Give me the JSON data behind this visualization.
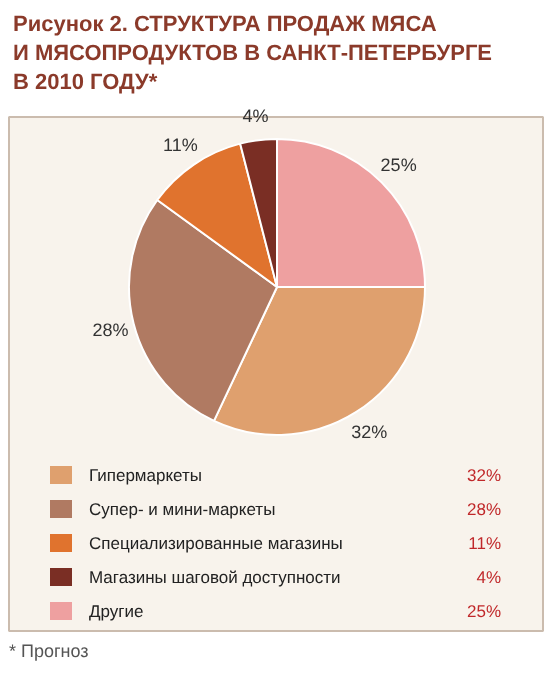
{
  "chart_data": {
    "type": "pie",
    "title": "Рисунок 2. СТРУКТУРА ПРОДАЖ МЯСА\nИ МЯСОПРОДУКТОВ В САНКТ-ПЕТЕРБУРГЕ\nВ 2010 ГОДУ*",
    "categories": [
      "Гипермаркеты",
      "Супер- и мини-маркеты",
      "Специализированные магазины",
      "Магазины шаговой доступности",
      "Другие"
    ],
    "values": [
      32,
      28,
      11,
      4,
      25
    ],
    "value_labels": [
      "32%",
      "28%",
      "11%",
      "4%",
      "25%"
    ],
    "colors": [
      "#dfa06e",
      "#b07a62",
      "#e0732e",
      "#7a2e24",
      "#eea0a0"
    ],
    "data_labels": true,
    "legend": "bottom",
    "annotations": [
      "* Прогноз"
    ]
  }
}
